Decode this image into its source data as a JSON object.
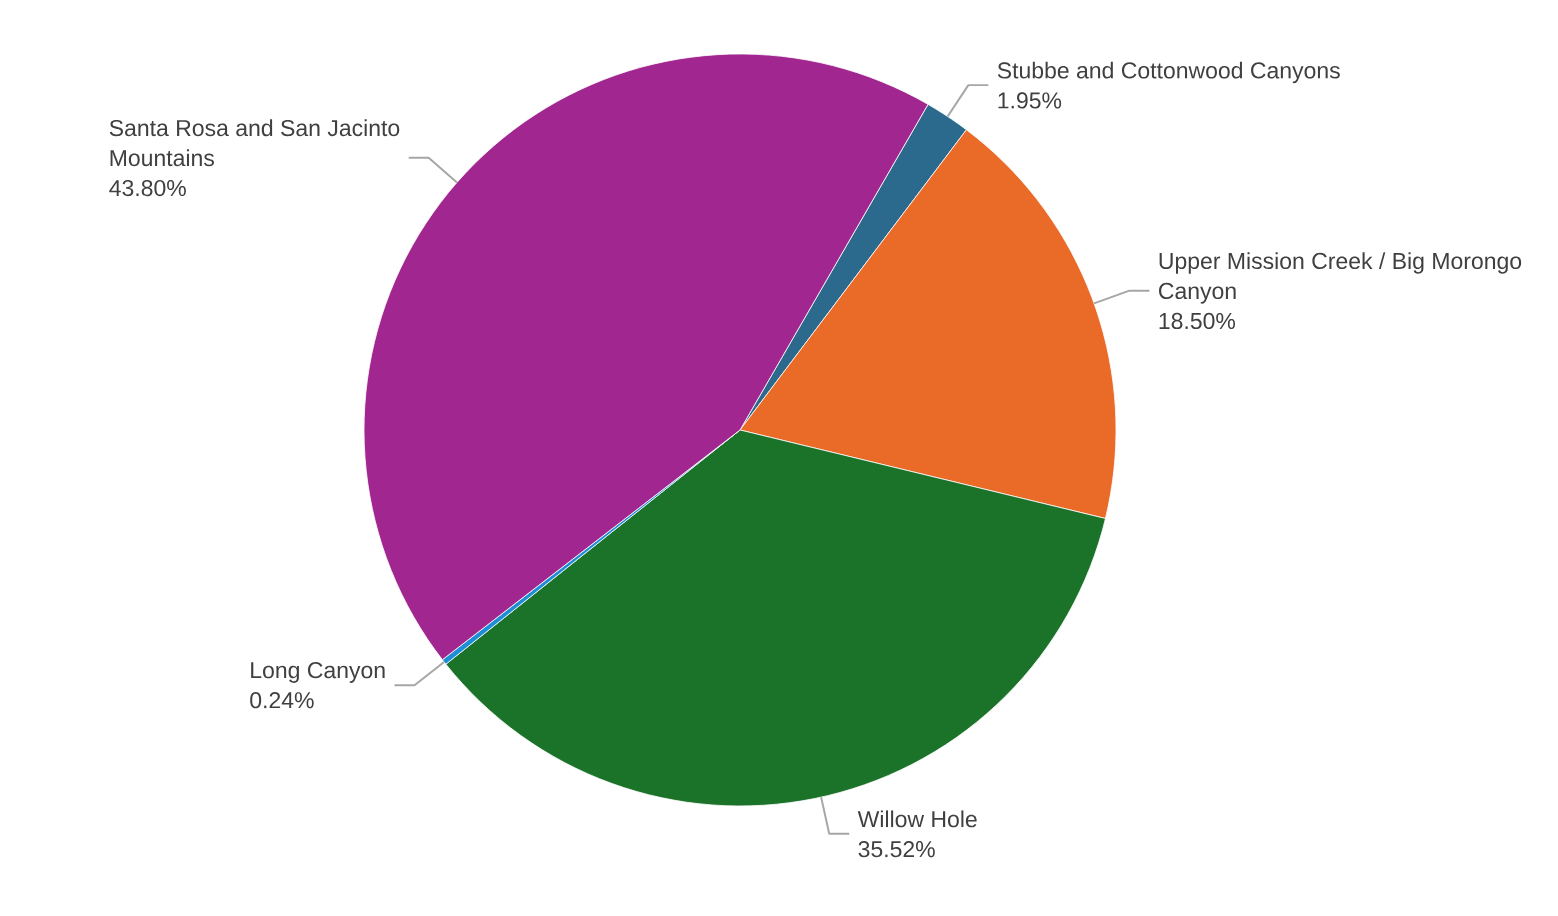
{
  "chart_data": {
    "type": "pie",
    "categories": [
      "Stubbe and Cottonwood Canyons",
      "Upper Mission Creek / Big Morongo Canyon",
      "Willow Hole",
      "Long Canyon",
      "Santa Rosa and San Jacinto Mountains"
    ],
    "values": [
      1.95,
      18.5,
      35.52,
      0.24,
      43.8
    ],
    "value_labels": [
      "1.95%",
      "18.50%",
      "35.52%",
      "0.24%",
      "43.80%"
    ],
    "colors": [
      "#2b6a8c",
      "#ea6a28",
      "#1b7229",
      "#1e8fd6",
      "#a2268f"
    ]
  }
}
